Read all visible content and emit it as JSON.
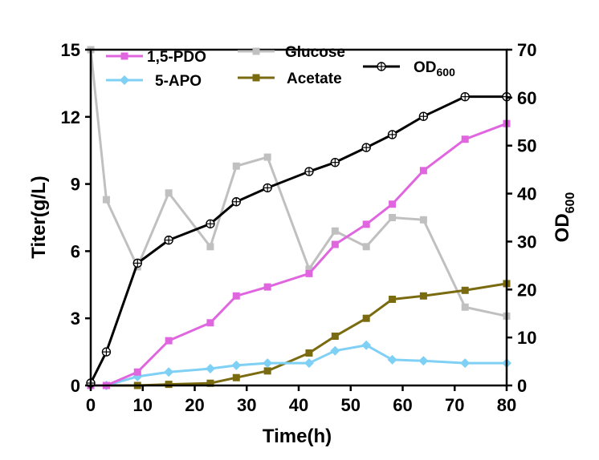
{
  "chart_data": {
    "type": "line",
    "xlabel": "Time(h)",
    "ylabel": "Titer(g/L)",
    "y2label": "OD600",
    "xlim": [
      0,
      80
    ],
    "ylim": [
      0,
      15
    ],
    "y2lim": [
      0,
      70
    ],
    "x_ticks": [
      0,
      10,
      20,
      30,
      40,
      50,
      60,
      70,
      80
    ],
    "y_ticks": [
      0,
      3,
      6,
      9,
      12,
      15
    ],
    "y2_ticks": [
      0,
      10,
      20,
      30,
      40,
      50,
      60,
      70
    ],
    "grid": false,
    "legend_position": "top",
    "series": [
      {
        "name": "1,5-PDO",
        "axis": "left",
        "color": "#e066e0",
        "marker": "square",
        "x": [
          0,
          3,
          9,
          15,
          23,
          28,
          34,
          42,
          47,
          53,
          58,
          64,
          72,
          80
        ],
        "values": [
          0,
          0,
          0.6,
          2.0,
          2.8,
          4.0,
          4.4,
          5.0,
          6.3,
          7.2,
          8.1,
          9.6,
          11.0,
          11.7
        ]
      },
      {
        "name": "5-APO",
        "axis": "left",
        "color": "#7fd0f5",
        "marker": "diamond",
        "x": [
          0,
          3,
          9,
          15,
          23,
          28,
          34,
          42,
          47,
          53,
          58,
          64,
          72,
          80
        ],
        "values": [
          0,
          0,
          0.4,
          0.6,
          0.75,
          0.9,
          1.0,
          1.0,
          1.55,
          1.8,
          1.15,
          1.1,
          1.0,
          1.0
        ]
      },
      {
        "name": "Glucose",
        "axis": "left",
        "color": "#c0c0c0",
        "marker": "square",
        "x": [
          0,
          3,
          9,
          15,
          23,
          28,
          34,
          42,
          47,
          53,
          58,
          64,
          72,
          80
        ],
        "values": [
          15.0,
          8.3,
          5.3,
          8.6,
          6.2,
          9.8,
          10.2,
          5.2,
          6.9,
          6.2,
          7.5,
          7.4,
          3.5,
          3.1
        ]
      },
      {
        "name": "Acetate",
        "axis": "left",
        "color": "#7a6a10",
        "marker": "square",
        "x": [
          0,
          3,
          9,
          15,
          23,
          28,
          34,
          42,
          47,
          53,
          58,
          64,
          72,
          80
        ],
        "values": [
          0,
          0,
          0,
          0.05,
          0.1,
          0.35,
          0.65,
          1.45,
          2.2,
          3.0,
          3.85,
          4.0,
          4.25,
          4.55
        ]
      },
      {
        "name": "OD600",
        "axis": "right",
        "color": "#000000",
        "marker": "circle-plus",
        "x": [
          0,
          3,
          9,
          15,
          23,
          28,
          34,
          42,
          47,
          53,
          58,
          64,
          72,
          80
        ],
        "values": [
          0.5,
          7.0,
          25.5,
          30.3,
          33.7,
          38.3,
          41.2,
          44.6,
          46.5,
          49.6,
          52.3,
          56.1,
          60.2,
          60.2
        ]
      }
    ]
  }
}
